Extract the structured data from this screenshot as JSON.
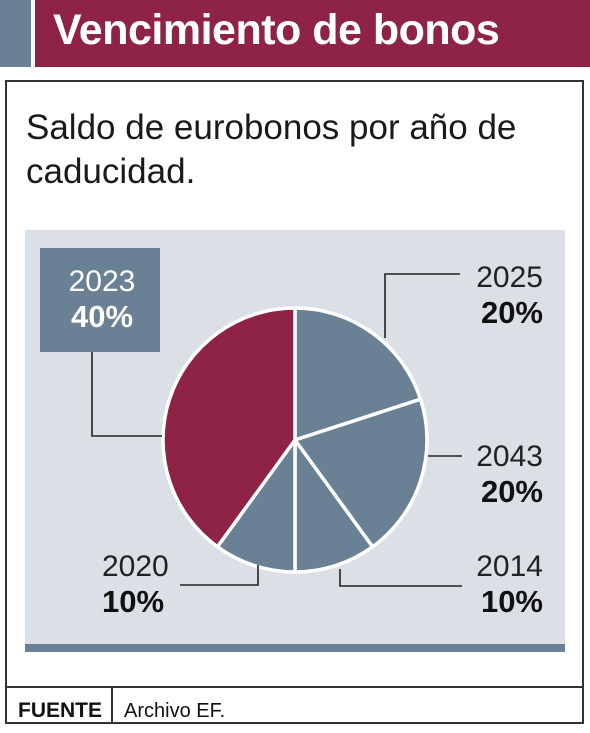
{
  "title": "Vencimiento de bonos",
  "subtitle": "Saldo de eurobonos por año de caducidad.",
  "footer": {
    "label": "FUENTE",
    "value": "Archivo EF."
  },
  "colors": {
    "highlight": "#8f2247",
    "slice": "#6a8094",
    "panel": "#dbe0e7",
    "highlight_box": "#6a8094"
  },
  "chart_data": {
    "type": "pie",
    "slices": [
      {
        "label": "2025",
        "value": 20,
        "value_label": "20%"
      },
      {
        "label": "2043",
        "value": 20,
        "value_label": "20%"
      },
      {
        "label": "2014",
        "value": 10,
        "value_label": "10%"
      },
      {
        "label": "2020",
        "value": 10,
        "value_label": "10%"
      },
      {
        "label": "2023",
        "value": 40,
        "value_label": "40%",
        "highlighted": true
      }
    ]
  }
}
